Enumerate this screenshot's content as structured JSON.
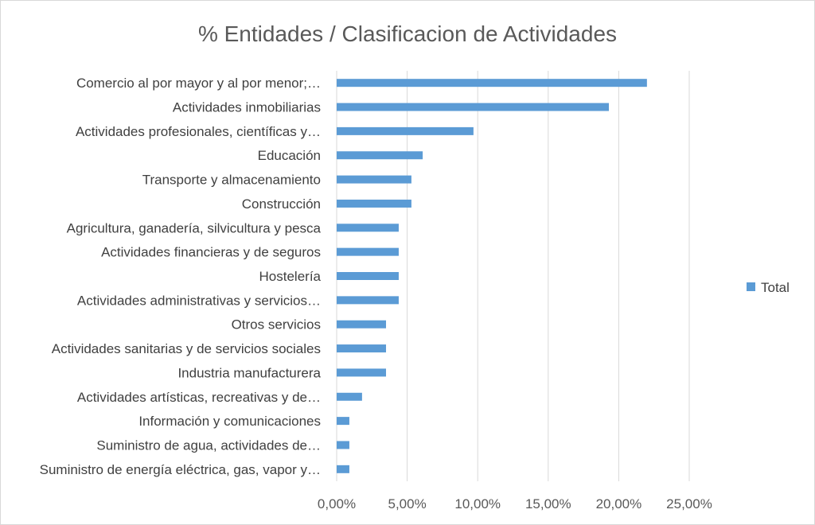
{
  "chart_data": {
    "type": "bar",
    "orientation": "horizontal",
    "title": "% Entidades / Clasificacion de Actividades",
    "categories": [
      "Comercio al por mayor y al por menor;…",
      "Actividades inmobiliarias",
      "Actividades profesionales, científicas y…",
      "Educación",
      "Transporte y almacenamiento",
      "Construcción",
      "Agricultura, ganadería, silvicultura y pesca",
      "Actividades financieras y de seguros",
      "Hostelería",
      "Actividades administrativas y servicios…",
      "Otros servicios",
      "Actividades sanitarias y de servicios sociales",
      "Industria manufacturera",
      "Actividades artísticas, recreativas y de…",
      "Información y comunicaciones",
      "Suministro de agua, actividades de…",
      "Suministro de energía eléctrica, gas, vapor y…"
    ],
    "series": [
      {
        "name": "Total",
        "color": "#5b9bd5",
        "values": [
          22.0,
          19.3,
          9.7,
          6.1,
          5.3,
          5.3,
          4.4,
          4.4,
          4.4,
          4.4,
          3.5,
          3.5,
          3.5,
          1.8,
          0.9,
          0.9,
          0.9
        ]
      }
    ],
    "xlim": [
      0,
      25
    ],
    "xticks": [
      0,
      5,
      10,
      15,
      20,
      25
    ],
    "xtick_labels": [
      "0,00%",
      "5,00%",
      "10,00%",
      "15,00%",
      "20,00%",
      "25,00%"
    ],
    "grid": true,
    "legend": {
      "position": "right",
      "entries": [
        "Total"
      ]
    }
  }
}
